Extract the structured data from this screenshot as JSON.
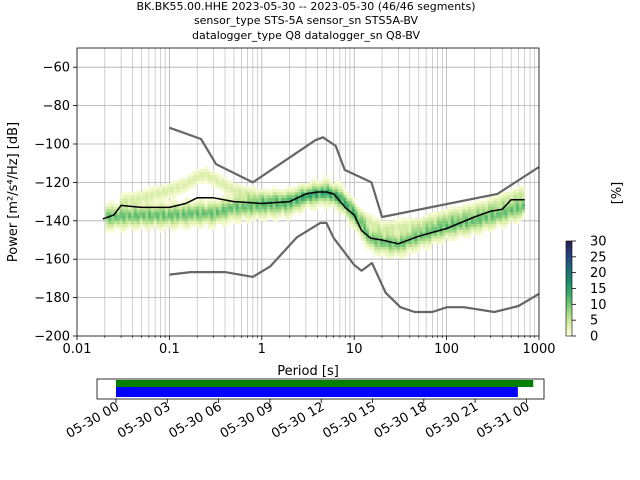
{
  "title_lines": [
    "BK.BK55.00.HHE   2023-05-30 -- 2023-05-30  (46/46 segments)",
    "sensor_type STS-5A sensor_sn STS5A-BV",
    "datalogger_type Q8 datalogger_sn Q8-BV"
  ],
  "colors": {
    "mean_line": "#000000",
    "noise_model": "#666666",
    "grid": "#b0b0b0",
    "coverage_green": "#008000",
    "coverage_blue": "#0000ff"
  },
  "chart_data": [
    {
      "type": "heatmap",
      "title": "",
      "xlabel": "Period [s]",
      "ylabel": "Power [m²/s⁴/Hz] [dB]",
      "x_scale": "log",
      "xlim": [
        0.01,
        1000
      ],
      "ylim": [
        -200,
        -50
      ],
      "x_ticks": [
        {
          "v": 0.01,
          "label": "0.01"
        },
        {
          "v": 0.1,
          "label": "0.1"
        },
        {
          "v": 1,
          "label": "1"
        },
        {
          "v": 10,
          "label": "10"
        },
        {
          "v": 100,
          "label": "100"
        },
        {
          "v": 1000,
          "label": "1000"
        }
      ],
      "y_ticks": [
        -200,
        -180,
        -160,
        -140,
        -120,
        -100,
        -80,
        -60
      ],
      "y_tick_labels": [
        "−200",
        "−180",
        "−160",
        "−140",
        "−120",
        "−100",
        "−80",
        "−60"
      ],
      "grid": true,
      "colorbar": {
        "label": "[%]",
        "range": [
          0,
          30
        ],
        "ticks": [
          "0",
          "5",
          "10",
          "15",
          "20",
          "25",
          "30"
        ],
        "colormap": [
          "#ffffe0",
          "#d4eba2",
          "#8fd17e",
          "#41b06b",
          "#1d8a6f",
          "#1f6a78",
          "#27427a",
          "#2a1c50"
        ]
      },
      "series": [
        {
          "name": "",
          "role": "mean",
          "points": [
            [
              0.019,
              -139
            ],
            [
              0.025,
              -137
            ],
            [
              0.03,
              -132
            ],
            [
              0.05,
              -133
            ],
            [
              0.1,
              -133
            ],
            [
              0.15,
              -131
            ],
            [
              0.2,
              -128
            ],
            [
              0.3,
              -128
            ],
            [
              0.5,
              -130
            ],
            [
              1.0,
              -131
            ],
            [
              2.0,
              -130
            ],
            [
              3.0,
              -126
            ],
            [
              4.0,
              -125
            ],
            [
              5.0,
              -125
            ],
            [
              6.0,
              -126
            ],
            [
              8.0,
              -133
            ],
            [
              10.0,
              -137
            ],
            [
              12.0,
              -145
            ],
            [
              15.0,
              -149
            ],
            [
              20.0,
              -150
            ],
            [
              30.0,
              -152
            ],
            [
              50.0,
              -148
            ],
            [
              100.0,
              -144
            ],
            [
              200.0,
              -138
            ],
            [
              300.0,
              -135
            ],
            [
              400.0,
              -134
            ],
            [
              500.0,
              -129
            ],
            [
              700.0,
              -129
            ]
          ]
        },
        {
          "name": "",
          "role": "high_noise_model",
          "points": [
            [
              0.1,
              -91.5
            ],
            [
              0.22,
              -97.4
            ],
            [
              0.32,
              -110.5
            ],
            [
              0.8,
              -120
            ],
            [
              3.8,
              -98
            ],
            [
              4.6,
              -96.5
            ],
            [
              6.3,
              -101
            ],
            [
              7.9,
              -113.5
            ],
            [
              15.4,
              -120
            ],
            [
              20,
              -138
            ],
            [
              354.8,
              -126
            ],
            [
              1000,
              -112
            ]
          ]
        },
        {
          "name": "",
          "role": "low_noise_model",
          "points": [
            [
              0.1,
              -168
            ],
            [
              0.17,
              -166.7
            ],
            [
              0.4,
              -166.7
            ],
            [
              0.8,
              -169.2
            ],
            [
              1.24,
              -163.7
            ],
            [
              2.4,
              -148.6
            ],
            [
              4.3,
              -141.1
            ],
            [
              5.0,
              -141.1
            ],
            [
              6.0,
              -149
            ],
            [
              10.0,
              -163
            ],
            [
              12.0,
              -166
            ],
            [
              15.6,
              -162
            ],
            [
              21.9,
              -177.5
            ],
            [
              31.6,
              -185
            ],
            [
              45,
              -187.5
            ],
            [
              70,
              -187.5
            ],
            [
              101,
              -185
            ],
            [
              154,
              -185
            ],
            [
              328,
              -187.5
            ],
            [
              600,
              -184.4
            ],
            [
              1000,
              -178
            ]
          ]
        }
      ],
      "density_bands": [
        {
          "comment": "lower persistent band",
          "points": [
            [
              0.02,
              -138
            ],
            [
              0.05,
              -137
            ],
            [
              0.1,
              -137
            ],
            [
              0.2,
              -136
            ],
            [
              0.3,
              -136
            ],
            [
              0.5,
              -133
            ],
            [
              1,
              -132
            ],
            [
              2,
              -131
            ],
            [
              3,
              -127
            ],
            [
              5,
              -125
            ],
            [
              7,
              -128
            ],
            [
              10,
              -137
            ],
            [
              15,
              -149
            ],
            [
              20,
              -151
            ],
            [
              30,
              -152
            ],
            [
              50,
              -148
            ],
            [
              100,
              -143
            ],
            [
              200,
              -140
            ],
            [
              400,
              -136
            ],
            [
              700,
              -132
            ]
          ]
        },
        {
          "comment": "upper secondary band",
          "points": [
            [
              0.03,
              -130
            ],
            [
              0.05,
              -128
            ],
            [
              0.1,
              -124
            ],
            [
              0.15,
              -121
            ],
            [
              0.2,
              -117
            ],
            [
              0.25,
              -116
            ],
            [
              0.3,
              -118
            ],
            [
              0.5,
              -124
            ],
            [
              1,
              -128
            ],
            [
              2,
              -128
            ],
            [
              5,
              -125
            ],
            [
              8,
              -129
            ],
            [
              12,
              -138
            ],
            [
              20,
              -144
            ],
            [
              50,
              -142
            ],
            [
              100,
              -138
            ],
            [
              300,
              -132
            ],
            [
              700,
              -125
            ]
          ]
        }
      ]
    },
    {
      "type": "bar",
      "title": "",
      "xlabel": "",
      "ylabel": "",
      "x_ticks": [
        "05-30 00",
        "05-30 03",
        "05-30 06",
        "05-30 09",
        "05-30 12",
        "05-30 15",
        "05-30 18",
        "05-30 21",
        "05-31 00"
      ],
      "bars": [
        {
          "color_key": "coverage_green",
          "start_hours": 0,
          "end_hours": 24.4
        },
        {
          "color_key": "coverage_blue",
          "start_hours": 0,
          "end_hours": 23.5
        }
      ]
    }
  ]
}
